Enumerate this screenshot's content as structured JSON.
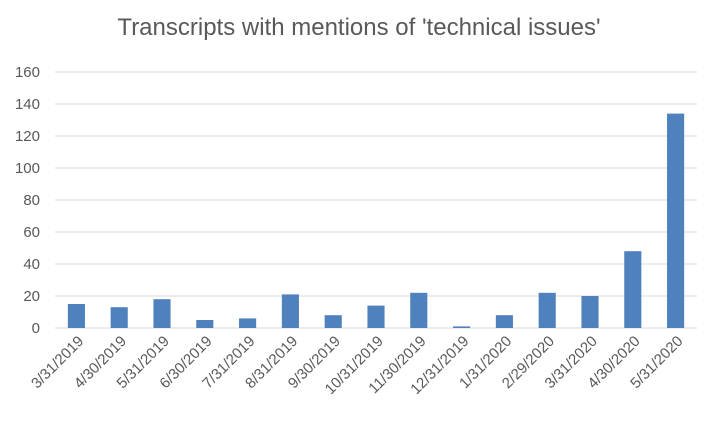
{
  "chart_data": {
    "type": "bar",
    "title": "Transcripts with mentions of 'technical issues'",
    "xlabel": "",
    "ylabel": "",
    "ylim": [
      0,
      160
    ],
    "yticks": [
      0,
      20,
      40,
      60,
      80,
      100,
      120,
      140,
      160
    ],
    "grid": true,
    "legend": "none",
    "bar_color": "#4f81bd",
    "grid_color": "#d9d9d9",
    "text_color": "#595959",
    "categories": [
      "3/31/2019",
      "4/30/2019",
      "5/31/2019",
      "6/30/2019",
      "7/31/2019",
      "8/31/2019",
      "9/30/2019",
      "10/31/2019",
      "11/30/2019",
      "12/31/2019",
      "1/31/2020",
      "2/29/2020",
      "3/31/2020",
      "4/30/2020",
      "5/31/2020"
    ],
    "values": [
      15,
      13,
      18,
      5,
      6,
      21,
      8,
      14,
      22,
      1,
      8,
      22,
      20,
      48,
      134
    ]
  }
}
